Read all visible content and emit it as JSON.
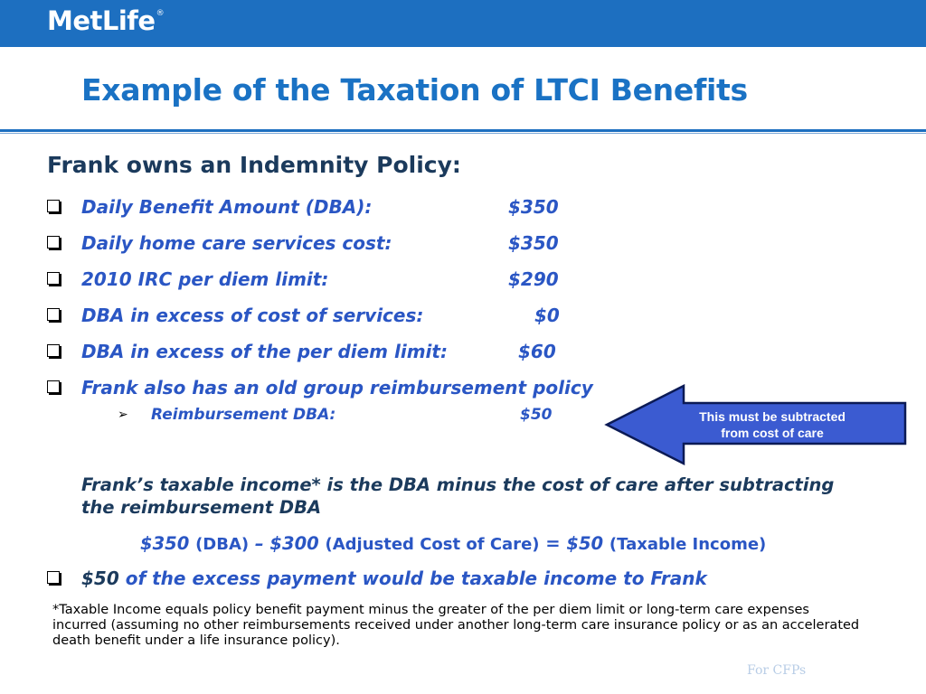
{
  "header": {
    "logo_text": "MetLife",
    "logo_mark": "®",
    "colors": {
      "bar": "#1d6fc0",
      "title": "#1a72c4",
      "bullet_text": "#2a56c4",
      "dark_text": "#1b3a5c",
      "callout_fill": "#3b5bd1"
    }
  },
  "slide": {
    "title": "Example of the Taxation of LTCI Benefits",
    "heading": "Frank owns an Indemnity Policy:",
    "bullets": [
      {
        "label": "Daily Benefit Amount (DBA):",
        "amount": "$350"
      },
      {
        "label": "Daily home care services cost:",
        "amount": "$350"
      },
      {
        "label": "2010 IRC per diem limit:",
        "amount": "$290"
      },
      {
        "label": "DBA in excess of cost of services:",
        "amount": "$0"
      },
      {
        "label": "DBA in excess of the per diem limit:",
        "amount": "$60"
      },
      {
        "label": "Frank also has an old group reimbursement policy",
        "amount": ""
      }
    ],
    "sub_bullet": {
      "label": "Reimbursement DBA:",
      "amount": "$50"
    },
    "callout": {
      "line1": "This must be subtracted",
      "line2": "from cost of care"
    },
    "paragraph": "Frank’s taxable income* is the DBA minus the cost of care after subtracting the reimbursement DBA",
    "equation": {
      "p1": "$350 ",
      "p2": "(DBA)",
      "p3": " – $300 ",
      "p4": "(Adjusted Cost of Care)",
      "p5": " = $50 ",
      "p6": "(Taxable Income)"
    },
    "final_bullet": {
      "amount": "$50",
      "text": " of the excess payment would be taxable income to Frank"
    },
    "footnote": "*Taxable Income equals policy benefit payment minus the greater of the per diem limit or long-term care expenses incurred (assuming no other reimbursements received under another long-term care insurance policy or as an accelerated death benefit under a life insurance policy).",
    "ghost_text": "For CFPs"
  }
}
